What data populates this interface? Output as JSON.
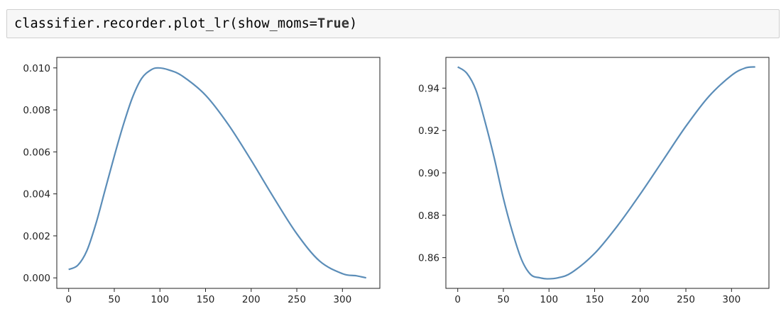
{
  "code": {
    "prefix": "classifier.recorder.plot_lr(show_moms=",
    "keyword": "True",
    "suffix": ")"
  },
  "chart_data": [
    {
      "type": "line",
      "title": "",
      "xlabel": "",
      "ylabel": "",
      "xlim": [
        -13,
        341
      ],
      "ylim": [
        -0.0005,
        0.0105
      ],
      "xticks": [
        0,
        50,
        100,
        150,
        200,
        250,
        300
      ],
      "xtick_labels": [
        "0",
        "50",
        "100",
        "150",
        "200",
        "250",
        "300"
      ],
      "yticks": [
        0.0,
        0.002,
        0.004,
        0.006,
        0.008,
        0.01
      ],
      "ytick_labels": [
        "0.000",
        "0.002",
        "0.004",
        "0.006",
        "0.008",
        "0.010"
      ],
      "grid": false,
      "color": "#5b8db8",
      "series": [
        {
          "x": [
            0,
            10,
            20,
            30,
            40,
            50,
            60,
            70,
            80,
            90,
            98,
            110,
            125,
            150,
            175,
            200,
            225,
            250,
            275,
            300,
            315,
            326
          ],
          "values": [
            0.0004,
            0.0006,
            0.0013,
            0.0026,
            0.0042,
            0.0058,
            0.0073,
            0.0086,
            0.0095,
            0.0099,
            0.01,
            0.0099,
            0.0096,
            0.0087,
            0.0073,
            0.0056,
            0.0038,
            0.0021,
            0.0008,
            0.0002,
            0.0001,
            0.0
          ]
        }
      ]
    },
    {
      "type": "line",
      "title": "",
      "xlabel": "",
      "ylabel": "",
      "xlim": [
        -13,
        341
      ],
      "ylim": [
        0.8455,
        0.9545
      ],
      "xticks": [
        0,
        50,
        100,
        150,
        200,
        250,
        300
      ],
      "xtick_labels": [
        "0",
        "50",
        "100",
        "150",
        "200",
        "250",
        "300"
      ],
      "yticks": [
        0.86,
        0.88,
        0.9,
        0.92,
        0.94
      ],
      "ytick_labels": [
        "0.86",
        "0.88",
        "0.90",
        "0.92",
        "0.94"
      ],
      "grid": false,
      "color": "#5b8db8",
      "series": [
        {
          "x": [
            0,
            10,
            20,
            30,
            40,
            50,
            60,
            70,
            80,
            90,
            98,
            110,
            125,
            150,
            175,
            200,
            225,
            250,
            275,
            300,
            315,
            326
          ],
          "values": [
            0.95,
            0.947,
            0.939,
            0.924,
            0.907,
            0.888,
            0.872,
            0.859,
            0.852,
            0.8505,
            0.85,
            0.8505,
            0.853,
            0.862,
            0.875,
            0.89,
            0.906,
            0.922,
            0.936,
            0.946,
            0.9495,
            0.95
          ]
        }
      ]
    }
  ]
}
